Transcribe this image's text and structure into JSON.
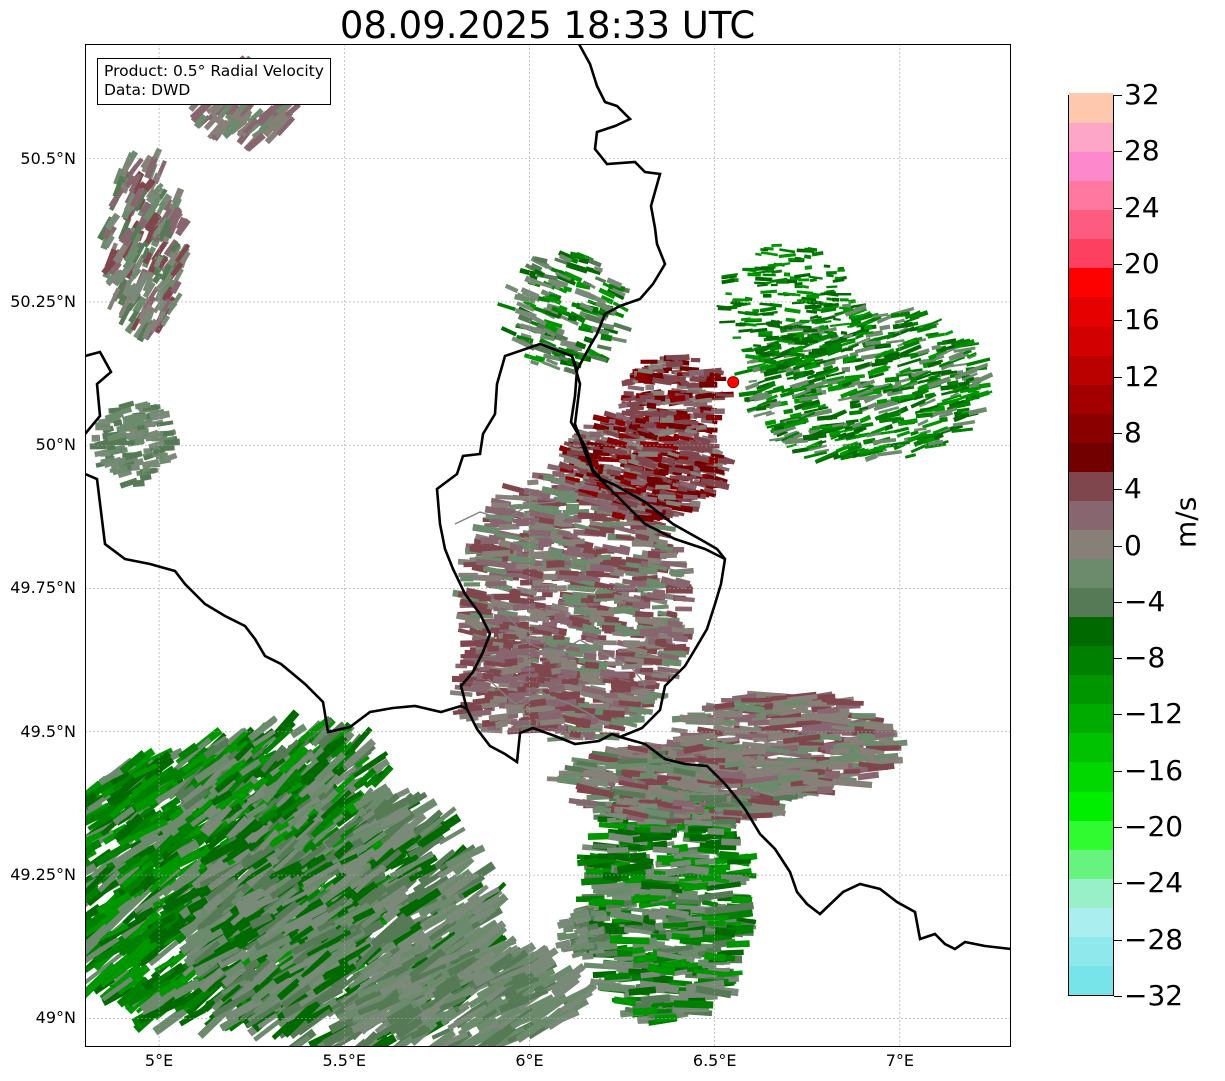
{
  "title": "08.09.2025 18:33 UTC",
  "info": {
    "product": "Product: 0.5° Radial Velocity",
    "source": "Data: DWD"
  },
  "axes": {
    "lat_ticks": [
      {
        "value": 50.5,
        "label": "50.5°N"
      },
      {
        "value": 50.25,
        "label": "50.25°N"
      },
      {
        "value": 50.0,
        "label": "50°N"
      },
      {
        "value": 49.75,
        "label": "49.75°N"
      },
      {
        "value": 49.5,
        "label": "49.5°N"
      },
      {
        "value": 49.25,
        "label": "49.25°N"
      },
      {
        "value": 49.0,
        "label": "49°N"
      }
    ],
    "lon_ticks": [
      {
        "value": 5.0,
        "label": "5°E"
      },
      {
        "value": 5.5,
        "label": "5.5°E"
      },
      {
        "value": 6.0,
        "label": "6°E"
      },
      {
        "value": 6.5,
        "label": "6.5°E"
      },
      {
        "value": 7.0,
        "label": "7°E"
      }
    ],
    "lon_range": [
      4.8,
      7.3
    ],
    "lat_range": [
      48.95,
      50.7
    ],
    "grid": true
  },
  "radar_site": {
    "lon": 6.55,
    "lat": 50.11,
    "color": "#ff0000"
  },
  "colorbar": {
    "unit": "m/s",
    "min": -32,
    "max": 32,
    "tick_labels": [
      "32",
      "28",
      "24",
      "20",
      "16",
      "12",
      "8",
      "4",
      "0",
      "−4",
      "−8",
      "−12",
      "−16",
      "−20",
      "−24",
      "−28",
      "−32"
    ],
    "colors": [
      "#76e4e8",
      "#8ee8ec",
      "#aaeef0",
      "#98f0c8",
      "#66f47e",
      "#30fa30",
      "#00ee00",
      "#00d800",
      "#00c200",
      "#00ab00",
      "#009600",
      "#008000",
      "#006a00",
      "#557a55",
      "#6c8a6c",
      "#878078",
      "#886670",
      "#80464e",
      "#720000",
      "#8a0000",
      "#a20000",
      "#bb0000",
      "#d30000",
      "#e60000",
      "#fd0000",
      "#fe4060",
      "#fd5c80",
      "#fe78a0",
      "#fd88cc",
      "#fea6c6",
      "#fec8ae"
    ]
  },
  "colors": {
    "green_dark": "#006a00",
    "green_mid": "#008000",
    "gray_green": "#6c8a6c",
    "mauve": "#886670",
    "maroon": "#720000",
    "border": "#000000",
    "region_border": "#808080"
  }
}
